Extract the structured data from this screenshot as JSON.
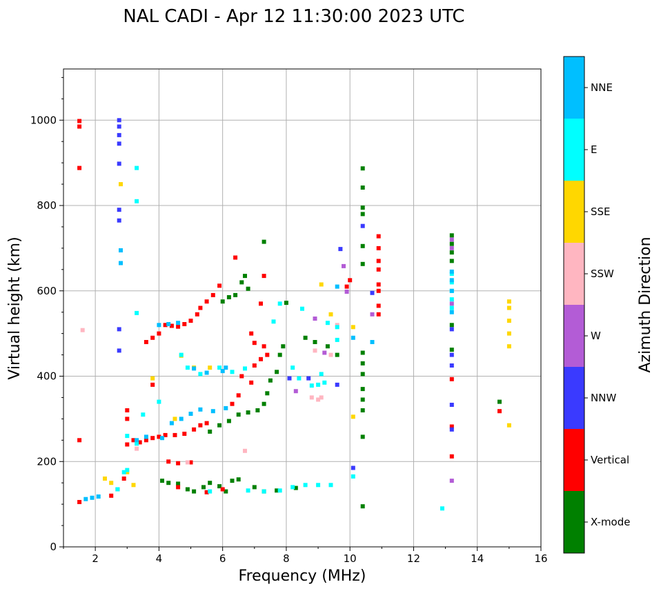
{
  "chart_data": {
    "type": "scatter",
    "title": "NAL CADI - Apr 12 11:30:00 2023 UTC",
    "xlabel": "Frequency (MHz)",
    "ylabel": "Virtual height (km)",
    "xlim": [
      1,
      16
    ],
    "ylim": [
      0,
      1120
    ],
    "xticks": [
      2,
      4,
      6,
      8,
      10,
      12,
      14,
      16
    ],
    "yticks": [
      0,
      200,
      400,
      600,
      800,
      1000
    ],
    "grid": true,
    "colorbar": {
      "label": "Azimuth Direction",
      "categories": [
        {
          "name": "X-mode",
          "color": "#008000"
        },
        {
          "name": "Vertical",
          "color": "#ff0000"
        },
        {
          "name": "NNW",
          "color": "#3a3aff"
        },
        {
          "name": "W",
          "color": "#b35cd6"
        },
        {
          "name": "SSW",
          "color": "#ffb6c1"
        },
        {
          "name": "SSE",
          "color": "#ffd700"
        },
        {
          "name": "E",
          "color": "#00ffff"
        },
        {
          "name": "NNE",
          "color": "#00bfff"
        }
      ]
    },
    "series": [
      {
        "name": "X-mode",
        "points": [
          [
            4.1,
            155
          ],
          [
            4.3,
            150
          ],
          [
            4.6,
            148
          ],
          [
            4.9,
            135
          ],
          [
            5.1,
            130
          ],
          [
            5.4,
            140
          ],
          [
            5.6,
            150
          ],
          [
            5.9,
            142
          ],
          [
            6.1,
            130
          ],
          [
            6.3,
            155
          ],
          [
            6.5,
            158
          ],
          [
            7.0,
            140
          ],
          [
            7.3,
            130
          ],
          [
            7.7,
            132
          ],
          [
            8.3,
            138
          ],
          [
            5.6,
            270
          ],
          [
            5.9,
            285
          ],
          [
            6.2,
            295
          ],
          [
            6.5,
            310
          ],
          [
            6.8,
            315
          ],
          [
            7.1,
            320
          ],
          [
            7.3,
            335
          ],
          [
            7.4,
            360
          ],
          [
            7.5,
            390
          ],
          [
            7.7,
            410
          ],
          [
            7.8,
            450
          ],
          [
            7.9,
            470
          ],
          [
            8.0,
            572
          ],
          [
            6.0,
            575
          ],
          [
            6.2,
            585
          ],
          [
            6.4,
            590
          ],
          [
            6.6,
            620
          ],
          [
            6.7,
            635
          ],
          [
            6.8,
            605
          ],
          [
            7.3,
            715
          ],
          [
            8.6,
            490
          ],
          [
            8.9,
            480
          ],
          [
            9.3,
            470
          ],
          [
            9.6,
            450
          ],
          [
            10.4,
            95
          ],
          [
            10.4,
            258
          ],
          [
            10.4,
            320
          ],
          [
            10.4,
            345
          ],
          [
            10.4,
            370
          ],
          [
            10.4,
            405
          ],
          [
            10.4,
            430
          ],
          [
            10.4,
            455
          ],
          [
            10.4,
            663
          ],
          [
            10.4,
            705
          ],
          [
            10.4,
            780
          ],
          [
            10.4,
            795
          ],
          [
            10.4,
            842
          ],
          [
            10.4,
            887
          ],
          [
            13.2,
            730
          ],
          [
            13.2,
            710
          ],
          [
            13.2,
            690
          ],
          [
            13.2,
            670
          ],
          [
            13.2,
            520
          ],
          [
            13.2,
            462
          ],
          [
            14.7,
            340
          ]
        ]
      },
      {
        "name": "Vertical",
        "points": [
          [
            1.5,
            105
          ],
          [
            1.5,
            250
          ],
          [
            1.5,
            888
          ],
          [
            1.5,
            985
          ],
          [
            1.5,
            998
          ],
          [
            2.5,
            120
          ],
          [
            2.7,
            135
          ],
          [
            2.9,
            160
          ],
          [
            3.0,
            240
          ],
          [
            3.0,
            300
          ],
          [
            3.0,
            320
          ],
          [
            3.2,
            250
          ],
          [
            3.4,
            245
          ],
          [
            3.6,
            250
          ],
          [
            3.8,
            255
          ],
          [
            4.0,
            258
          ],
          [
            4.2,
            262
          ],
          [
            4.5,
            262
          ],
          [
            4.8,
            265
          ],
          [
            5.1,
            275
          ],
          [
            5.3,
            285
          ],
          [
            5.5,
            290
          ],
          [
            3.6,
            480
          ],
          [
            3.8,
            490
          ],
          [
            4.0,
            500
          ],
          [
            4.2,
            520
          ],
          [
            4.4,
            518
          ],
          [
            4.6,
            516
          ],
          [
            4.8,
            522
          ],
          [
            5.0,
            530
          ],
          [
            5.2,
            545
          ],
          [
            5.3,
            560
          ],
          [
            5.5,
            575
          ],
          [
            5.7,
            590
          ],
          [
            5.9,
            612
          ],
          [
            3.8,
            380
          ],
          [
            4.3,
            200
          ],
          [
            4.6,
            196
          ],
          [
            5.0,
            198
          ],
          [
            6.3,
            335
          ],
          [
            6.5,
            355
          ],
          [
            6.4,
            678
          ],
          [
            6.6,
            400
          ],
          [
            6.9,
            385
          ],
          [
            7.0,
            425
          ],
          [
            7.2,
            440
          ],
          [
            7.3,
            470
          ],
          [
            7.4,
            450
          ],
          [
            7.0,
            478
          ],
          [
            6.9,
            500
          ],
          [
            5.5,
            128
          ],
          [
            6.0,
            135
          ],
          [
            4.6,
            140
          ],
          [
            7.3,
            635
          ],
          [
            7.2,
            570
          ],
          [
            9.9,
            610
          ],
          [
            10.0,
            625
          ],
          [
            10.9,
            545
          ],
          [
            10.9,
            565
          ],
          [
            10.9,
            600
          ],
          [
            10.9,
            615
          ],
          [
            10.9,
            650
          ],
          [
            10.9,
            670
          ],
          [
            10.9,
            700
          ],
          [
            10.9,
            728
          ],
          [
            13.2,
            212
          ],
          [
            13.2,
            282
          ],
          [
            13.2,
            393
          ],
          [
            14.7,
            318
          ]
        ]
      },
      {
        "name": "NNW",
        "points": [
          [
            2.75,
            1000
          ],
          [
            2.75,
            985
          ],
          [
            2.75,
            965
          ],
          [
            2.75,
            945
          ],
          [
            2.75,
            898
          ],
          [
            2.75,
            790
          ],
          [
            2.75,
            765
          ],
          [
            2.75,
            510
          ],
          [
            2.75,
            460
          ],
          [
            8.1,
            395
          ],
          [
            8.7,
            395
          ],
          [
            9.6,
            380
          ],
          [
            9.7,
            698
          ],
          [
            10.1,
            185
          ],
          [
            10.4,
            752
          ],
          [
            10.7,
            595
          ],
          [
            13.2,
            450
          ],
          [
            13.2,
            425
          ],
          [
            13.2,
            333
          ],
          [
            13.2,
            275
          ],
          [
            13.2,
            510
          ]
        ]
      },
      {
        "name": "W",
        "points": [
          [
            8.3,
            365
          ],
          [
            8.9,
            535
          ],
          [
            9.2,
            455
          ],
          [
            9.8,
            658
          ],
          [
            9.9,
            598
          ],
          [
            10.7,
            545
          ],
          [
            13.2,
            155
          ],
          [
            13.2,
            570
          ],
          [
            13.2,
            700
          ],
          [
            13.2,
            720
          ]
        ]
      },
      {
        "name": "SSW",
        "points": [
          [
            1.6,
            508
          ],
          [
            3.3,
            230
          ],
          [
            4.9,
            198
          ],
          [
            6.7,
            225
          ],
          [
            8.8,
            350
          ],
          [
            9.0,
            345
          ],
          [
            9.1,
            350
          ],
          [
            8.9,
            460
          ],
          [
            9.4,
            450
          ],
          [
            9.6,
            520
          ]
        ]
      },
      {
        "name": "SSE",
        "points": [
          [
            2.3,
            160
          ],
          [
            2.5,
            150
          ],
          [
            2.8,
            850
          ],
          [
            3.0,
            175
          ],
          [
            3.2,
            145
          ],
          [
            3.8,
            395
          ],
          [
            4.5,
            300
          ],
          [
            4.7,
            448
          ],
          [
            5.1,
            420
          ],
          [
            5.6,
            420
          ],
          [
            9.1,
            615
          ],
          [
            9.4,
            545
          ],
          [
            10.1,
            305
          ],
          [
            10.1,
            515
          ],
          [
            15.0,
            285
          ],
          [
            15.0,
            470
          ],
          [
            15.0,
            500
          ],
          [
            15.0,
            530
          ],
          [
            15.0,
            560
          ],
          [
            15.0,
            575
          ]
        ]
      },
      {
        "name": "E",
        "points": [
          [
            2.7,
            135
          ],
          [
            2.9,
            175
          ],
          [
            3.0,
            180
          ],
          [
            3.0,
            260
          ],
          [
            3.3,
            888
          ],
          [
            3.3,
            810
          ],
          [
            3.3,
            548
          ],
          [
            3.3,
            242
          ],
          [
            3.5,
            310
          ],
          [
            4.0,
            340
          ],
          [
            4.7,
            450
          ],
          [
            4.9,
            420
          ],
          [
            5.3,
            405
          ],
          [
            5.9,
            420
          ],
          [
            6.3,
            410
          ],
          [
            6.7,
            418
          ],
          [
            5.6,
            130
          ],
          [
            6.8,
            132
          ],
          [
            7.3,
            130
          ],
          [
            7.8,
            132
          ],
          [
            8.2,
            140
          ],
          [
            8.6,
            145
          ],
          [
            9.0,
            145
          ],
          [
            9.4,
            145
          ],
          [
            7.8,
            570
          ],
          [
            7.6,
            528
          ],
          [
            8.2,
            420
          ],
          [
            8.4,
            395
          ],
          [
            8.8,
            378
          ],
          [
            9.0,
            380
          ],
          [
            9.1,
            405
          ],
          [
            9.2,
            385
          ],
          [
            9.6,
            485
          ],
          [
            9.6,
            515
          ],
          [
            9.3,
            525
          ],
          [
            8.5,
            558
          ],
          [
            10.1,
            165
          ],
          [
            12.9,
            90
          ],
          [
            13.2,
            600
          ],
          [
            13.2,
            620
          ],
          [
            13.2,
            640
          ],
          [
            13.2,
            580
          ],
          [
            13.2,
            560
          ]
        ]
      },
      {
        "name": "NNE",
        "points": [
          [
            1.7,
            112
          ],
          [
            1.9,
            115
          ],
          [
            2.1,
            118
          ],
          [
            3.3,
            250
          ],
          [
            3.6,
            258
          ],
          [
            4.1,
            255
          ],
          [
            4.4,
            290
          ],
          [
            4.7,
            300
          ],
          [
            5.0,
            312
          ],
          [
            5.3,
            322
          ],
          [
            5.7,
            318
          ],
          [
            6.1,
            325
          ],
          [
            4.0,
            520
          ],
          [
            4.3,
            522
          ],
          [
            4.6,
            525
          ],
          [
            5.1,
            418
          ],
          [
            5.5,
            408
          ],
          [
            6.0,
            412
          ],
          [
            6.1,
            420
          ],
          [
            2.8,
            665
          ],
          [
            2.8,
            695
          ],
          [
            9.6,
            610
          ],
          [
            10.1,
            490
          ],
          [
            10.7,
            480
          ],
          [
            13.2,
            550
          ],
          [
            13.2,
            600
          ],
          [
            13.2,
            625
          ],
          [
            13.2,
            645
          ]
        ]
      }
    ]
  }
}
